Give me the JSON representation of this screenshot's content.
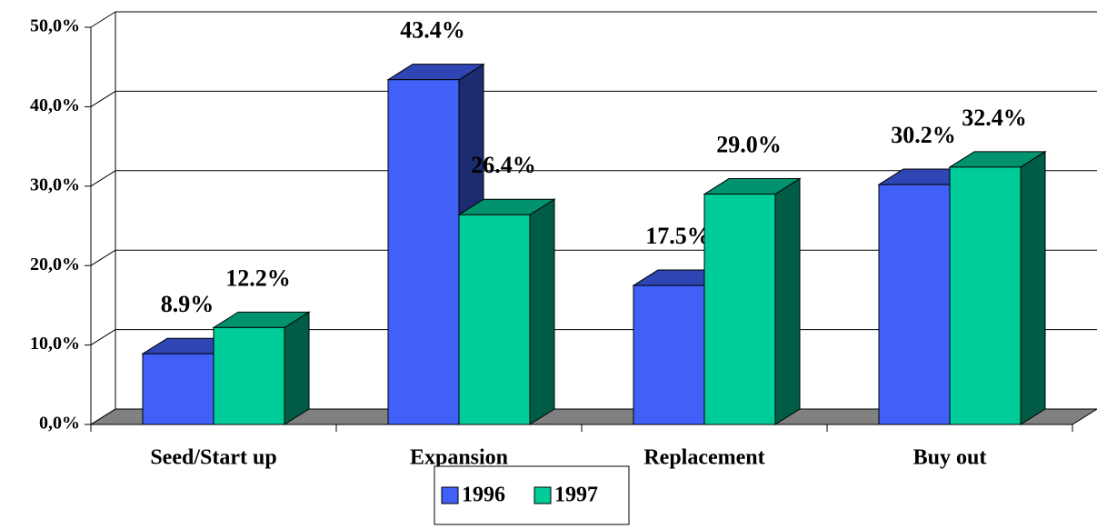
{
  "chart_data": {
    "type": "bar3d",
    "categories": [
      "Seed/Start up",
      "Expansion",
      "Replacement",
      "Buy out"
    ],
    "series": [
      {
        "name": "1996",
        "color": "#4060f8",
        "values": [
          8.9,
          43.4,
          17.5,
          30.2
        ],
        "value_labels": [
          "8.9%",
          "43.4%",
          "17.5%",
          "30.2%"
        ]
      },
      {
        "name": "1997",
        "color": "#00cc99",
        "values": [
          12.2,
          26.4,
          29.0,
          32.4
        ],
        "value_labels": [
          "12.2%",
          "26.4%",
          "29.0%",
          "32.4%"
        ]
      }
    ],
    "ylim": [
      0,
      50
    ],
    "yticks": [
      {
        "value": 0,
        "label": "0,0%"
      },
      {
        "value": 10,
        "label": "10,0%"
      },
      {
        "value": 20,
        "label": "20,0%"
      },
      {
        "value": 30,
        "label": "30,0%"
      },
      {
        "value": 40,
        "label": "40,0%"
      },
      {
        "value": 50,
        "label": "50,0%"
      }
    ],
    "grid": true,
    "legend": "bottom"
  }
}
